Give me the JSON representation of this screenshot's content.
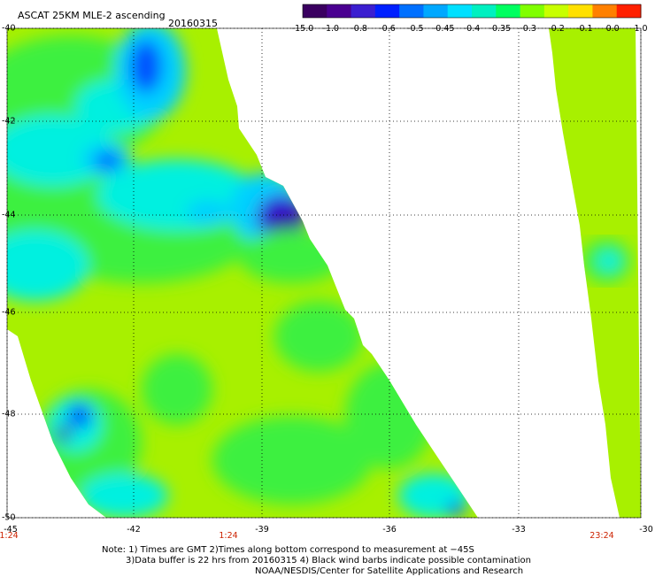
{
  "header": {
    "title": "ASCAT 25KM MLE-2 ascending",
    "date": "20160315"
  },
  "colorbar": {
    "labels": [
      "-15.0",
      "-1.0",
      "-0.8",
      "-0.6",
      "-0.5",
      "-0.45",
      "-0.4",
      "-0.35",
      "-0.3",
      "-0.2",
      "-0.1",
      "0.0",
      "1.0"
    ],
    "colors": [
      "#3a0060",
      "#4a0090",
      "#3b1fd0",
      "#0020ff",
      "#0070ff",
      "#00a8ff",
      "#00e0ff",
      "#00f0c0",
      "#00ff60",
      "#80ff00",
      "#c8ff00",
      "#ffe000",
      "#ff8000",
      "#ff2000"
    ]
  },
  "map": {
    "lat_labels": [
      "-40",
      "-42",
      "-44",
      "-46",
      "-48",
      "-50"
    ],
    "lon_labels": [
      "-45",
      "-42",
      "-39",
      "-36",
      "-33",
      "-30"
    ],
    "time_labels": [
      "1:24",
      "1:24",
      "23:24"
    ],
    "palette": {
      "lime": "#a8f000",
      "green": "#3cf040",
      "cyan": "#00f0e0",
      "lightblue": "#00d0ff",
      "blue": "#0050ff",
      "deepblue": "#2000d0",
      "purple": "#3a0090"
    }
  },
  "notes": {
    "line1": "Note: 1) Times are GMT 2)Times along bottom correspond to measurement at −45S",
    "line2": "3)Data buffer is 22 hrs from 20160315 4) Black wind barbs indicate possible contamination",
    "line3": "NOAA/NESDIS/Center for Satellite Applications and Research"
  }
}
